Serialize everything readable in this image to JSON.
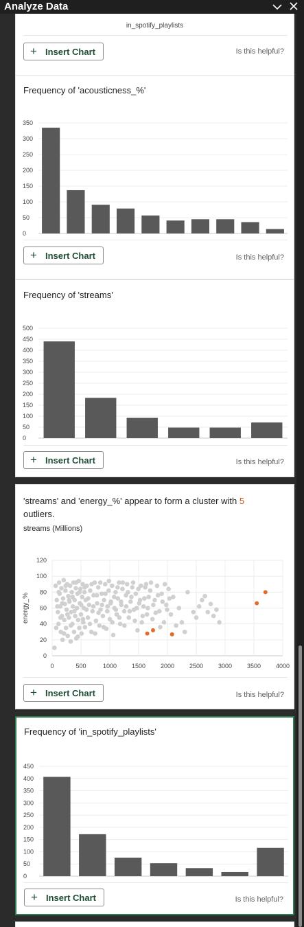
{
  "pane": {
    "title": "Analyze Data"
  },
  "card0": {
    "axis_label": "in_spotify_playlists"
  },
  "common": {
    "insert_label": "Insert Chart",
    "helpful_label": "Is this helpful?"
  },
  "card1": {
    "title": "Frequency of 'acousticness_%'",
    "chart_data": {
      "type": "bar",
      "title": "Frequency of 'acousticness_%'",
      "xlabel": "acousticness_%",
      "ylabel": "",
      "ylim": [
        0,
        350
      ],
      "yticks": [
        0,
        50,
        100,
        150,
        200,
        250,
        300,
        350
      ],
      "values": [
        335,
        137,
        91,
        79,
        57,
        41,
        45,
        45,
        36,
        14
      ],
      "grid": true
    }
  },
  "card2": {
    "title": "Frequency of 'streams'",
    "chart_data": {
      "type": "bar",
      "title": "Frequency of 'streams'",
      "xlabel": "streams",
      "ylabel": "",
      "ylim": [
        0,
        500
      ],
      "yticks": [
        0,
        50,
        100,
        150,
        200,
        250,
        300,
        350,
        400,
        450,
        500
      ],
      "values": [
        440,
        183,
        92,
        48,
        48,
        71
      ],
      "grid": true
    }
  },
  "card3": {
    "title_pre": "'streams' and 'energy_%' appear to form a cluster with ",
    "title_num": "5",
    "title_post": " outliers.",
    "subtitle": "streams (Millions)",
    "chart_data": {
      "type": "scatter",
      "xlabel": "streams",
      "ylabel": "energy_%",
      "xlim": [
        0,
        4000
      ],
      "ylim": [
        0,
        120
      ],
      "xticks": [
        0,
        500,
        1000,
        1500,
        2000,
        2500,
        3000,
        3500,
        4000
      ],
      "yticks": [
        0,
        20,
        40,
        60,
        80,
        100,
        120
      ],
      "cluster_color": "#d0d0d0",
      "outlier_color": "#e36c2d",
      "outliers": [
        [
          1650,
          28
        ],
        [
          1750,
          32
        ],
        [
          2080,
          27
        ],
        [
          3550,
          66
        ],
        [
          3700,
          80
        ]
      ],
      "cluster": [
        [
          40,
          10
        ],
        [
          60,
          88
        ],
        [
          80,
          70
        ],
        [
          100,
          55
        ],
        [
          110,
          40
        ],
        [
          120,
          92
        ],
        [
          130,
          78
        ],
        [
          140,
          62
        ],
        [
          150,
          30
        ],
        [
          160,
          85
        ],
        [
          170,
          50
        ],
        [
          180,
          20
        ],
        [
          190,
          72
        ],
        [
          200,
          95
        ],
        [
          210,
          45
        ],
        [
          220,
          65
        ],
        [
          230,
          82
        ],
        [
          240,
          35
        ],
        [
          250,
          58
        ],
        [
          260,
          90
        ],
        [
          270,
          25
        ],
        [
          280,
          75
        ],
        [
          290,
          48
        ],
        [
          300,
          68
        ],
        [
          310,
          88
        ],
        [
          320,
          18
        ],
        [
          330,
          55
        ],
        [
          340,
          80
        ],
        [
          350,
          40
        ],
        [
          360,
          62
        ],
        [
          370,
          92
        ],
        [
          380,
          30
        ],
        [
          390,
          70
        ],
        [
          400,
          50
        ],
        [
          410,
          85
        ],
        [
          420,
          22
        ],
        [
          430,
          60
        ],
        [
          440,
          78
        ],
        [
          450,
          45
        ],
        [
          460,
          94
        ],
        [
          470,
          35
        ],
        [
          480,
          66
        ],
        [
          490,
          84
        ],
        [
          500,
          52
        ],
        [
          510,
          28
        ],
        [
          520,
          74
        ],
        [
          530,
          90
        ],
        [
          540,
          42
        ],
        [
          550,
          60
        ],
        [
          560,
          80
        ],
        [
          570,
          36
        ],
        [
          580,
          70
        ],
        [
          600,
          88
        ],
        [
          620,
          48
        ],
        [
          640,
          64
        ],
        [
          660,
          82
        ],
        [
          680,
          30
        ],
        [
          700,
          56
        ],
        [
          720,
          76
        ],
        [
          740,
          92
        ],
        [
          760,
          44
        ],
        [
          780,
          66
        ],
        [
          800,
          86
        ],
        [
          820,
          38
        ],
        [
          840,
          58
        ],
        [
          860,
          78
        ],
        [
          880,
          50
        ],
        [
          900,
          70
        ],
        [
          920,
          90
        ],
        [
          940,
          34
        ],
        [
          960,
          62
        ],
        [
          980,
          82
        ],
        [
          1000,
          46
        ],
        [
          1020,
          68
        ],
        [
          1040,
          88
        ],
        [
          1060,
          26
        ],
        [
          1080,
          60
        ],
        [
          1100,
          80
        ],
        [
          1120,
          52
        ],
        [
          1140,
          72
        ],
        [
          1160,
          92
        ],
        [
          1180,
          40
        ],
        [
          1200,
          64
        ],
        [
          1220,
          84
        ],
        [
          1250,
          56
        ],
        [
          1280,
          76
        ],
        [
          1300,
          90
        ],
        [
          1330,
          48
        ],
        [
          1360,
          68
        ],
        [
          1390,
          86
        ],
        [
          1420,
          58
        ],
        [
          1450,
          78
        ],
        [
          1480,
          32
        ],
        [
          1510,
          66
        ],
        [
          1540,
          88
        ],
        [
          1570,
          50
        ],
        [
          1600,
          72
        ],
        [
          1630,
          90
        ],
        [
          1660,
          60
        ],
        [
          1700,
          82
        ],
        [
          1740,
          46
        ],
        [
          1780,
          70
        ],
        [
          1820,
          88
        ],
        [
          1860,
          56
        ],
        [
          1900,
          78
        ],
        [
          1940,
          42
        ],
        [
          1980,
          64
        ],
        [
          2020,
          84
        ],
        [
          2060,
          52
        ],
        [
          2100,
          74
        ],
        [
          2150,
          38
        ],
        [
          2200,
          60
        ],
        [
          2250,
          42
        ],
        [
          2300,
          30
        ],
        [
          2350,
          80
        ],
        [
          2450,
          55
        ],
        [
          2500,
          48
        ],
        [
          2550,
          62
        ],
        [
          2600,
          70
        ],
        [
          2650,
          75
        ],
        [
          2700,
          55
        ],
        [
          2750,
          65
        ],
        [
          2800,
          50
        ],
        [
          2850,
          58
        ],
        [
          2900,
          42
        ],
        [
          70,
          35
        ],
        [
          90,
          62
        ],
        [
          115,
          80
        ],
        [
          145,
          48
        ],
        [
          175,
          66
        ],
        [
          205,
          28
        ],
        [
          235,
          88
        ],
        [
          265,
          52
        ],
        [
          295,
          70
        ],
        [
          325,
          38
        ],
        [
          355,
          74
        ],
        [
          385,
          56
        ],
        [
          415,
          92
        ],
        [
          445,
          24
        ],
        [
          475,
          80
        ],
        [
          505,
          64
        ],
        [
          535,
          46
        ],
        [
          565,
          86
        ],
        [
          595,
          58
        ],
        [
          625,
          72
        ],
        [
          655,
          40
        ],
        [
          685,
          90
        ],
        [
          715,
          62
        ],
        [
          745,
          28
        ],
        [
          775,
          76
        ],
        [
          805,
          54
        ],
        [
          835,
          92
        ],
        [
          865,
          64
        ],
        [
          895,
          36
        ],
        [
          925,
          78
        ],
        [
          955,
          56
        ],
        [
          985,
          94
        ],
        [
          1015,
          66
        ],
        [
          1045,
          42
        ],
        [
          1075,
          74
        ],
        [
          1105,
          58
        ],
        [
          1135,
          86
        ],
        [
          1165,
          48
        ],
        [
          1195,
          68
        ],
        [
          1225,
          92
        ],
        [
          1255,
          38
        ],
        [
          1285,
          62
        ],
        [
          1315,
          80
        ],
        [
          1345,
          56
        ],
        [
          1375,
          74
        ],
        [
          1405,
          92
        ],
        [
          1435,
          44
        ],
        [
          1465,
          60
        ],
        [
          1495,
          84
        ],
        [
          1525,
          70
        ],
        [
          1555,
          42
        ],
        [
          1585,
          62
        ],
        [
          1615,
          86
        ],
        [
          1645,
          52
        ],
        [
          1675,
          74
        ],
        [
          1715,
          92
        ],
        [
          1755,
          64
        ],
        [
          1795,
          54
        ],
        [
          1835,
          76
        ],
        [
          1875,
          36
        ],
        [
          1915,
          68
        ],
        [
          1955,
          90
        ],
        [
          1995,
          58
        ],
        [
          2035,
          72
        ]
      ]
    }
  },
  "card4": {
    "title": "Frequency of 'in_spotify_playlists'",
    "chart_data": {
      "type": "bar",
      "title": "Frequency of 'in_spotify_playlists'",
      "xlabel": "in_spotify_playlists",
      "ylabel": "",
      "ylim": [
        0,
        450
      ],
      "yticks": [
        0,
        50,
        100,
        150,
        200,
        250,
        300,
        350,
        400,
        450
      ],
      "values": [
        407,
        172,
        76,
        53,
        33,
        17,
        116
      ],
      "grid": true
    }
  }
}
